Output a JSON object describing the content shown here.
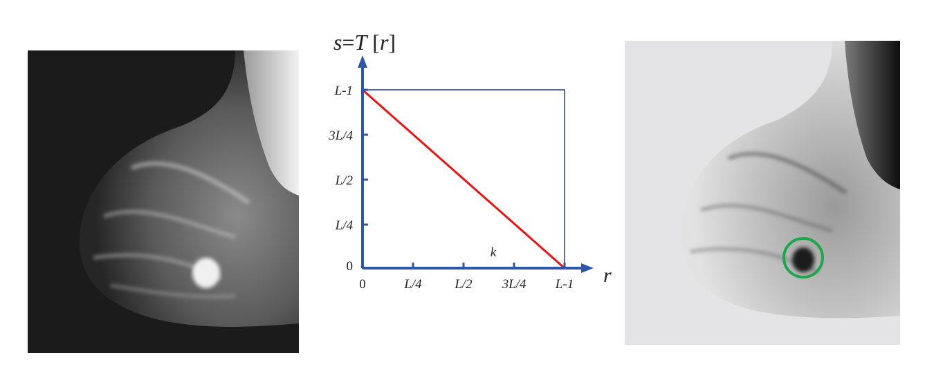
{
  "left_image": {
    "description_name": "mammogram-original"
  },
  "right_image": {
    "description_name": "mammogram-negative"
  },
  "diagram": {
    "y_axis_label": {
      "s": "s",
      "eq": "=",
      "T": "T",
      "lb": " [",
      "r": "r",
      "rb": "]"
    },
    "x_axis_label": "r",
    "y_ticks": [
      "L-1",
      "3L/4",
      "L/2",
      "L/4",
      "0"
    ],
    "x_ticks": [
      "0",
      "L/4",
      "L/2",
      "3L/4",
      "L-1"
    ],
    "k_label": "k",
    "colors": {
      "axis": "#2e56a6",
      "line": "#ee1111",
      "box": "#2e4a8a",
      "circle": "#1aa84a"
    }
  }
}
